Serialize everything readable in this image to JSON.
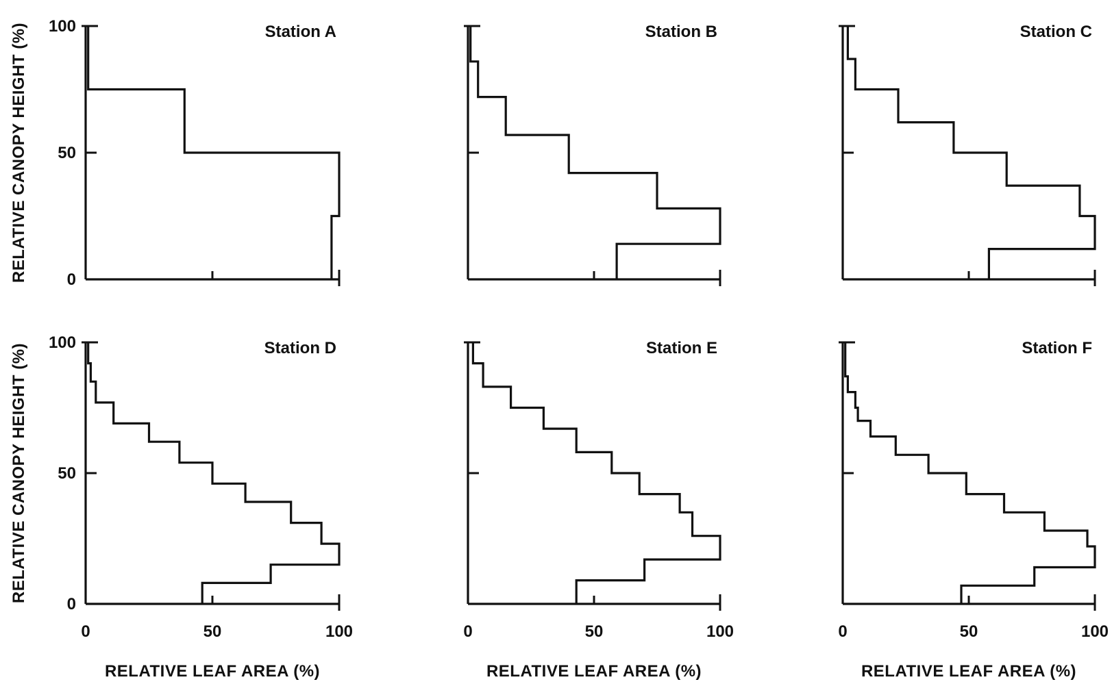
{
  "chart_data": [
    {
      "type": "line",
      "title": "Station A",
      "xlabel": "",
      "ylabel": "RELATIVE CANOPY HEIGHT (%)",
      "xlim": [
        0,
        100
      ],
      "ylim": [
        0,
        100
      ],
      "x_ticks": [
        "0",
        "50",
        "100"
      ],
      "y_ticks": [
        "0",
        "50",
        "100"
      ],
      "show_x_tick_labels": false,
      "step_profile": [
        [
          1,
          100
        ],
        [
          1,
          75
        ],
        [
          39,
          75
        ],
        [
          39,
          50
        ],
        [
          100,
          50
        ],
        [
          100,
          25
        ],
        [
          97,
          25
        ],
        [
          97,
          0
        ]
      ]
    },
    {
      "type": "line",
      "title": "Station B",
      "xlabel": "",
      "ylabel": "",
      "xlim": [
        0,
        100
      ],
      "ylim": [
        0,
        100
      ],
      "x_ticks": [
        "0",
        "50",
        "100"
      ],
      "y_ticks": [
        "0",
        "50",
        "100"
      ],
      "show_x_tick_labels": false,
      "step_profile": [
        [
          1,
          100
        ],
        [
          1,
          86
        ],
        [
          4,
          86
        ],
        [
          4,
          72
        ],
        [
          15,
          72
        ],
        [
          15,
          57
        ],
        [
          40,
          57
        ],
        [
          40,
          42
        ],
        [
          75,
          42
        ],
        [
          75,
          28
        ],
        [
          100,
          28
        ],
        [
          100,
          14
        ],
        [
          59,
          14
        ],
        [
          59,
          0
        ]
      ]
    },
    {
      "type": "line",
      "title": "Station C",
      "xlabel": "",
      "ylabel": "",
      "xlim": [
        0,
        100
      ],
      "ylim": [
        0,
        100
      ],
      "x_ticks": [
        "0",
        "50",
        "100"
      ],
      "y_ticks": [
        "0",
        "50",
        "100"
      ],
      "show_x_tick_labels": false,
      "step_profile": [
        [
          2,
          100
        ],
        [
          2,
          87
        ],
        [
          5,
          87
        ],
        [
          5,
          75
        ],
        [
          22,
          75
        ],
        [
          22,
          62
        ],
        [
          44,
          62
        ],
        [
          44,
          50
        ],
        [
          65,
          50
        ],
        [
          65,
          37
        ],
        [
          94,
          37
        ],
        [
          94,
          25
        ],
        [
          100,
          25
        ],
        [
          100,
          12
        ],
        [
          58,
          12
        ],
        [
          58,
          0
        ]
      ]
    },
    {
      "type": "line",
      "title": "Station D",
      "xlabel": "RELATIVE LEAF AREA (%)",
      "ylabel": "RELATIVE CANOPY HEIGHT (%)",
      "xlim": [
        0,
        100
      ],
      "ylim": [
        0,
        100
      ],
      "x_ticks": [
        "0",
        "50",
        "100"
      ],
      "y_ticks": [
        "0",
        "50",
        "100"
      ],
      "show_x_tick_labels": true,
      "step_profile": [
        [
          1,
          100
        ],
        [
          1,
          92
        ],
        [
          2,
          92
        ],
        [
          2,
          85
        ],
        [
          4,
          85
        ],
        [
          4,
          77
        ],
        [
          11,
          77
        ],
        [
          11,
          69
        ],
        [
          25,
          69
        ],
        [
          25,
          62
        ],
        [
          37,
          62
        ],
        [
          37,
          54
        ],
        [
          50,
          54
        ],
        [
          50,
          46
        ],
        [
          63,
          46
        ],
        [
          63,
          39
        ],
        [
          81,
          39
        ],
        [
          81,
          31
        ],
        [
          93,
          31
        ],
        [
          93,
          23
        ],
        [
          100,
          23
        ],
        [
          100,
          15
        ],
        [
          73,
          15
        ],
        [
          73,
          8
        ],
        [
          46,
          8
        ],
        [
          46,
          0
        ]
      ]
    },
    {
      "type": "line",
      "title": "Station E",
      "xlabel": "RELATIVE LEAF AREA (%)",
      "ylabel": "",
      "xlim": [
        0,
        100
      ],
      "ylim": [
        0,
        100
      ],
      "x_ticks": [
        "0",
        "50",
        "100"
      ],
      "y_ticks": [
        "0",
        "50",
        "100"
      ],
      "show_x_tick_labels": true,
      "step_profile": [
        [
          2,
          100
        ],
        [
          2,
          92
        ],
        [
          6,
          92
        ],
        [
          6,
          83
        ],
        [
          17,
          83
        ],
        [
          17,
          75
        ],
        [
          30,
          75
        ],
        [
          30,
          67
        ],
        [
          43,
          67
        ],
        [
          43,
          58
        ],
        [
          57,
          58
        ],
        [
          57,
          50
        ],
        [
          68,
          50
        ],
        [
          68,
          42
        ],
        [
          84,
          42
        ],
        [
          84,
          35
        ],
        [
          89,
          35
        ],
        [
          89,
          26
        ],
        [
          100,
          26
        ],
        [
          100,
          17
        ],
        [
          70,
          17
        ],
        [
          70,
          9
        ],
        [
          43,
          9
        ],
        [
          43,
          0
        ]
      ]
    },
    {
      "type": "line",
      "title": "Station F",
      "xlabel": "RELATIVE LEAF AREA (%)",
      "ylabel": "",
      "xlim": [
        0,
        100
      ],
      "ylim": [
        0,
        100
      ],
      "x_ticks": [
        "0",
        "50",
        "100"
      ],
      "y_ticks": [
        "0",
        "50",
        "100"
      ],
      "show_x_tick_labels": true,
      "step_profile": [
        [
          1,
          100
        ],
        [
          1,
          87
        ],
        [
          2,
          87
        ],
        [
          2,
          81
        ],
        [
          5,
          81
        ],
        [
          5,
          75
        ],
        [
          6,
          75
        ],
        [
          6,
          70
        ],
        [
          11,
          70
        ],
        [
          11,
          64
        ],
        [
          21,
          64
        ],
        [
          21,
          57
        ],
        [
          34,
          57
        ],
        [
          34,
          50
        ],
        [
          49,
          50
        ],
        [
          49,
          42
        ],
        [
          64,
          42
        ],
        [
          64,
          35
        ],
        [
          80,
          35
        ],
        [
          80,
          28
        ],
        [
          97,
          28
        ],
        [
          97,
          22
        ],
        [
          100,
          22
        ],
        [
          100,
          14
        ],
        [
          76,
          14
        ],
        [
          76,
          7
        ],
        [
          47,
          7
        ],
        [
          47,
          0
        ]
      ]
    }
  ]
}
